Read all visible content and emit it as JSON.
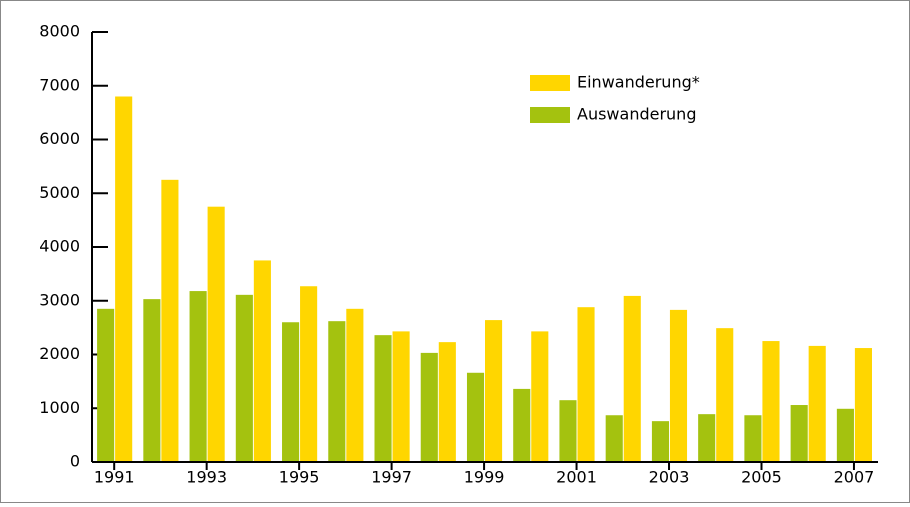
{
  "chart_data": {
    "type": "bar",
    "categories": [
      "1991",
      null,
      "1993",
      null,
      "1995",
      null,
      "1997",
      null,
      "1999",
      null,
      "2001",
      null,
      "2003",
      null,
      "2005",
      null,
      "2007"
    ],
    "series": [
      {
        "name": "Auswanderung",
        "color": "#a4c20f",
        "values": [
          2850,
          3030,
          3180,
          3110,
          2600,
          2620,
          2360,
          2030,
          1660,
          1360,
          1150,
          870,
          760,
          890,
          870,
          1060,
          990
        ]
      },
      {
        "name": "Einwanderung*",
        "color": "#ffd600",
        "values": [
          6800,
          5250,
          4750,
          3750,
          3270,
          2850,
          2430,
          2230,
          2640,
          2430,
          2880,
          3090,
          2830,
          2490,
          2250,
          2160,
          2120
        ]
      }
    ],
    "ylim": [
      0,
      8000
    ],
    "yticks": [
      0,
      1000,
      2000,
      3000,
      4000,
      5000,
      6000,
      7000,
      8000
    ]
  }
}
